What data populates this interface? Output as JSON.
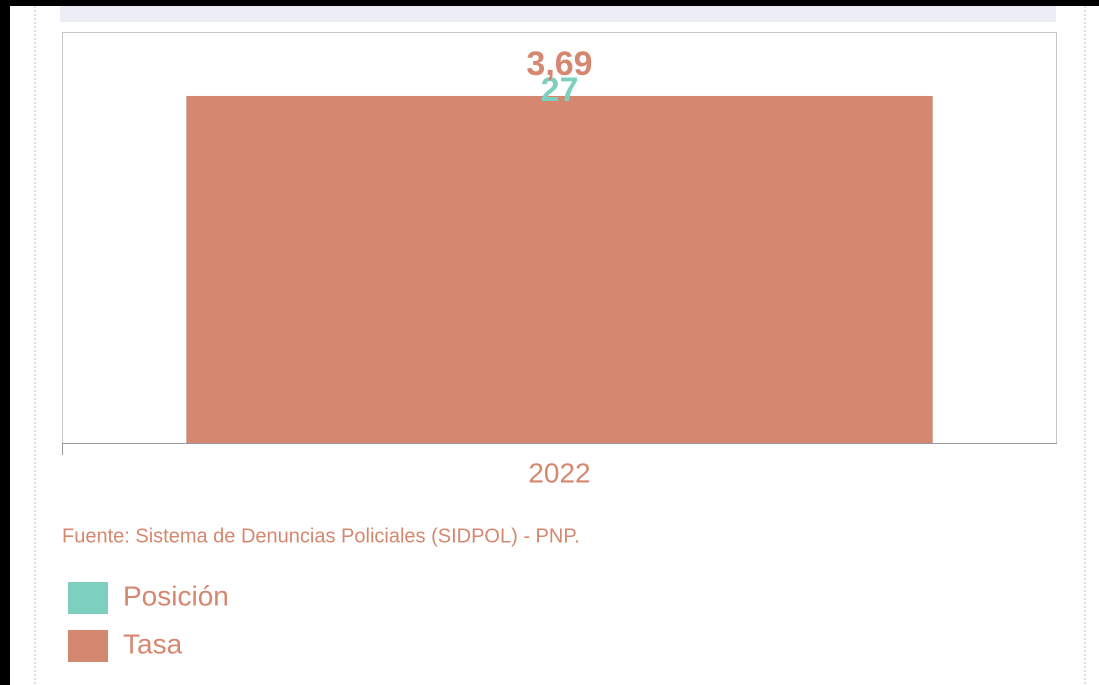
{
  "chart_data": {
    "type": "bar",
    "categories": [
      "2022"
    ],
    "series": [
      {
        "name": "Posición",
        "color": "#7dcfc0",
        "values": [
          27
        ],
        "axis": "y2"
      },
      {
        "name": "Tasa",
        "color": "#d5876f",
        "values": [
          3.69
        ],
        "value_labels": [
          "3,69"
        ]
      }
    ],
    "ylim": [
      0,
      4.37
    ],
    "y2lim": [
      0,
      32
    ],
    "source": "Fuente: Sistema de Denuncias Policiales (SIDPOL) - PNP.",
    "text_color": "#d5876f"
  }
}
